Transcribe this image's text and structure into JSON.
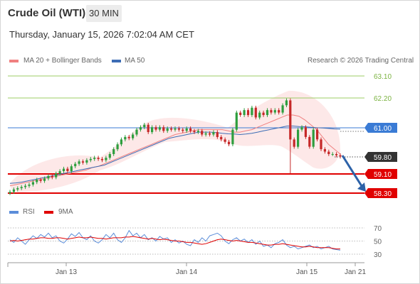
{
  "header": {
    "instrument": "Crude Oil (WTI)",
    "timeframe": "30 MIN",
    "datetime": "Thursday, January 15, 2026 7:02:04 AM CET",
    "legend_ma20": "MA 20 + Bollinger Bands",
    "legend_ma50": "MA 50",
    "copyright": "Research © 2026 Trading Central"
  },
  "rsi_legend": {
    "rsi": "RSI",
    "ma9": "9MA"
  },
  "colors": {
    "up": "#2e9e3e",
    "down": "#c62828",
    "ma20": "#f08080",
    "ma50": "#3d6db5",
    "band": "#fde4e4",
    "pivot": "#3a7bd5",
    "support": "#e00000",
    "target": "#9ccc65",
    "last": "#333333",
    "arrow": "#2d62a8",
    "rsi": "#5b8dd9",
    "rsi_ma": "#e00000"
  },
  "levels": [
    {
      "value": "63.10",
      "kind": "target"
    },
    {
      "value": "62.20",
      "kind": "target"
    },
    {
      "value": "61.00",
      "kind": "pivot"
    },
    {
      "value": "59.80",
      "kind": "last"
    },
    {
      "value": "59.10",
      "kind": "support"
    },
    {
      "value": "58.30",
      "kind": "support"
    }
  ],
  "rsi_ticks": [
    "70",
    "50",
    "30"
  ],
  "xaxis": [
    "Jan 13",
    "Jan 14",
    "Jan 15",
    "Jan 21"
  ],
  "chart_data": {
    "type": "candlestick",
    "ylim": [
      58.3,
      63.1
    ],
    "rsi_ylim": [
      30,
      70
    ],
    "closes": [
      58.35,
      58.45,
      58.5,
      58.55,
      58.6,
      58.65,
      58.75,
      58.85,
      58.8,
      58.9,
      59.0,
      58.95,
      59.1,
      59.2,
      59.3,
      59.2,
      59.4,
      59.5,
      59.6,
      59.55,
      59.65,
      59.7,
      59.75,
      59.7,
      59.65,
      59.75,
      59.9,
      60.1,
      60.3,
      60.5,
      60.6,
      60.55,
      60.7,
      60.9,
      61.0,
      61.1,
      60.8,
      61.0,
      60.9,
      61.0,
      60.85,
      60.95,
      60.9,
      60.95,
      60.9,
      60.85,
      60.95,
      60.85,
      60.8,
      60.85,
      60.7,
      60.75,
      60.7,
      60.8,
      60.6,
      60.5,
      60.4,
      60.3,
      60.9,
      61.6,
      61.5,
      61.7,
      61.5,
      61.8,
      61.4,
      61.6,
      61.5,
      61.7,
      61.6,
      61.7,
      61.6,
      61.9,
      62.1,
      60.5,
      60.2,
      60.9,
      61.0,
      60.6,
      60.2,
      60.9,
      60.5,
      60.1,
      60.0,
      59.9,
      59.9,
      59.85,
      59.8
    ],
    "ma20": [
      58.6,
      58.65,
      58.7,
      58.75,
      58.8,
      58.85,
      58.9,
      58.95,
      59.0,
      59.05,
      59.1,
      59.15,
      59.2,
      59.25,
      59.35,
      59.4,
      59.5,
      59.6,
      59.7,
      59.8,
      59.9,
      60.0,
      60.1,
      60.2,
      60.3,
      60.4,
      60.5,
      60.6,
      60.7,
      60.75,
      60.8,
      60.85,
      60.9,
      60.9,
      60.9,
      60.9,
      60.9,
      60.85,
      60.8,
      60.8,
      60.85,
      60.9,
      61.0,
      61.1,
      61.2,
      61.3,
      61.4,
      61.5,
      61.5,
      61.45,
      61.3,
      61.1,
      60.9,
      60.6,
      60.3,
      60.1,
      59.9
    ],
    "ma50": [
      58.7,
      58.72,
      58.75,
      58.8,
      58.85,
      58.9,
      58.95,
      59.0,
      59.05,
      59.1,
      59.15,
      59.2,
      59.25,
      59.3,
      59.35,
      59.4,
      59.45,
      59.55,
      59.65,
      59.75,
      59.85,
      59.95,
      60.05,
      60.15,
      60.25,
      60.35,
      60.45,
      60.55,
      60.6,
      60.65,
      60.7,
      60.75,
      60.8,
      60.8,
      60.8,
      60.78,
      60.75,
      60.73,
      60.72,
      60.7,
      60.72,
      60.75,
      60.8,
      60.85,
      60.9,
      60.95,
      61.0,
      61.05,
      61.05,
      61.03,
      61.02,
      61.0,
      60.98,
      60.97,
      60.95,
      60.93,
      60.92
    ],
    "rsi": [
      52,
      48,
      55,
      50,
      45,
      52,
      58,
      54,
      60,
      56,
      62,
      55,
      58,
      50,
      47,
      53,
      61,
      57,
      63,
      55,
      52,
      58,
      50,
      47,
      52,
      60,
      55,
      62,
      52,
      48,
      55,
      66,
      58,
      62,
      55,
      60,
      52,
      55,
      50,
      57,
      53,
      55,
      48,
      52,
      47,
      50,
      45,
      43,
      52,
      48,
      55,
      50,
      58,
      60,
      62,
      58,
      50,
      46,
      52,
      55,
      50,
      53,
      48,
      52,
      45,
      50,
      42,
      44,
      40,
      46,
      48,
      52,
      44,
      40,
      42,
      38,
      40,
      42,
      44,
      40,
      42,
      38,
      40,
      42,
      38,
      37,
      36
    ],
    "rsi_ma": [
      50,
      51,
      50,
      51,
      52,
      53,
      53,
      54,
      55,
      55,
      54,
      54,
      55,
      55,
      54,
      53,
      54,
      55,
      56,
      55,
      55,
      56,
      55,
      54,
      54,
      53,
      54,
      55,
      55,
      55,
      56,
      56,
      57,
      56,
      55,
      54,
      53,
      54,
      53,
      52,
      53,
      52,
      51,
      50,
      50,
      49,
      48,
      48,
      47,
      46,
      45,
      46,
      48,
      50,
      52,
      53,
      52,
      51,
      50,
      51,
      50,
      49,
      48,
      48,
      47,
      46,
      45,
      44,
      44,
      45,
      45,
      46,
      45,
      44,
      43,
      42,
      41,
      41,
      42,
      41,
      40,
      40,
      40,
      40,
      39,
      38,
      38
    ]
  }
}
